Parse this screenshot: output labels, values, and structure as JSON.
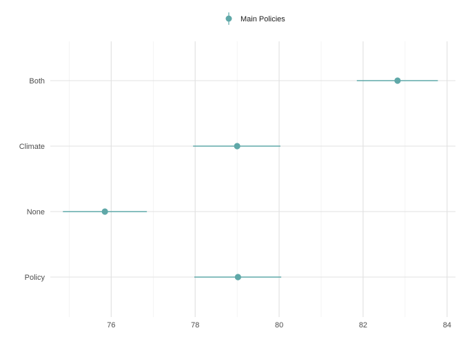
{
  "chart_data": {
    "type": "scatter",
    "subtype": "point-range",
    "title": "",
    "xlabel": "",
    "ylabel": "",
    "xlim": [
      74.55,
      84.2
    ],
    "x_ticks": [
      76,
      78,
      80,
      82,
      84
    ],
    "grid": true,
    "legend_position": "top",
    "categories": [
      "Both",
      "Climate",
      "None",
      "Policy"
    ],
    "series": [
      {
        "name": "Main Policies",
        "color": "#5fa8a8",
        "values": [
          82.82,
          79.0,
          75.85,
          79.02
        ],
        "lower": [
          81.85,
          77.95,
          74.85,
          77.98
        ],
        "upper": [
          83.78,
          80.03,
          76.85,
          80.05
        ]
      }
    ]
  }
}
